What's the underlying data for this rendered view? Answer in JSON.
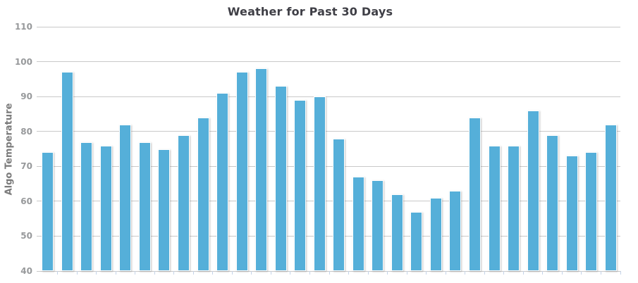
{
  "chart": {
    "colors": {
      "bar_fill": "#55AFD9",
      "bar_border": "#FFFFFF",
      "gridline": "#C9C9C9",
      "baseline": "#C9C9C9",
      "x_tick": "#C5D3E8",
      "title_text": "#3F3F46",
      "axis_label_text": "#97999B",
      "y_axis_title_text": "#7B7B7B",
      "background": "#FFFFFF"
    }
  },
  "chart_data": {
    "type": "bar",
    "title": "Weather for Past 30 Days",
    "xlabel": "",
    "ylabel": "Algo Temperature",
    "ylim": [
      40,
      110
    ],
    "y_ticks": [
      40,
      50,
      60,
      70,
      80,
      90,
      100,
      110
    ],
    "grid": true,
    "legend": false,
    "x_tick_labels_visible": false,
    "num_bars": 30,
    "values": [
      74,
      97,
      77,
      76,
      82,
      77,
      75,
      79,
      84,
      91,
      97,
      98,
      93,
      89,
      90,
      78,
      67,
      66,
      62,
      57,
      61,
      63,
      84,
      76,
      76,
      86,
      79,
      73,
      74,
      82
    ]
  }
}
